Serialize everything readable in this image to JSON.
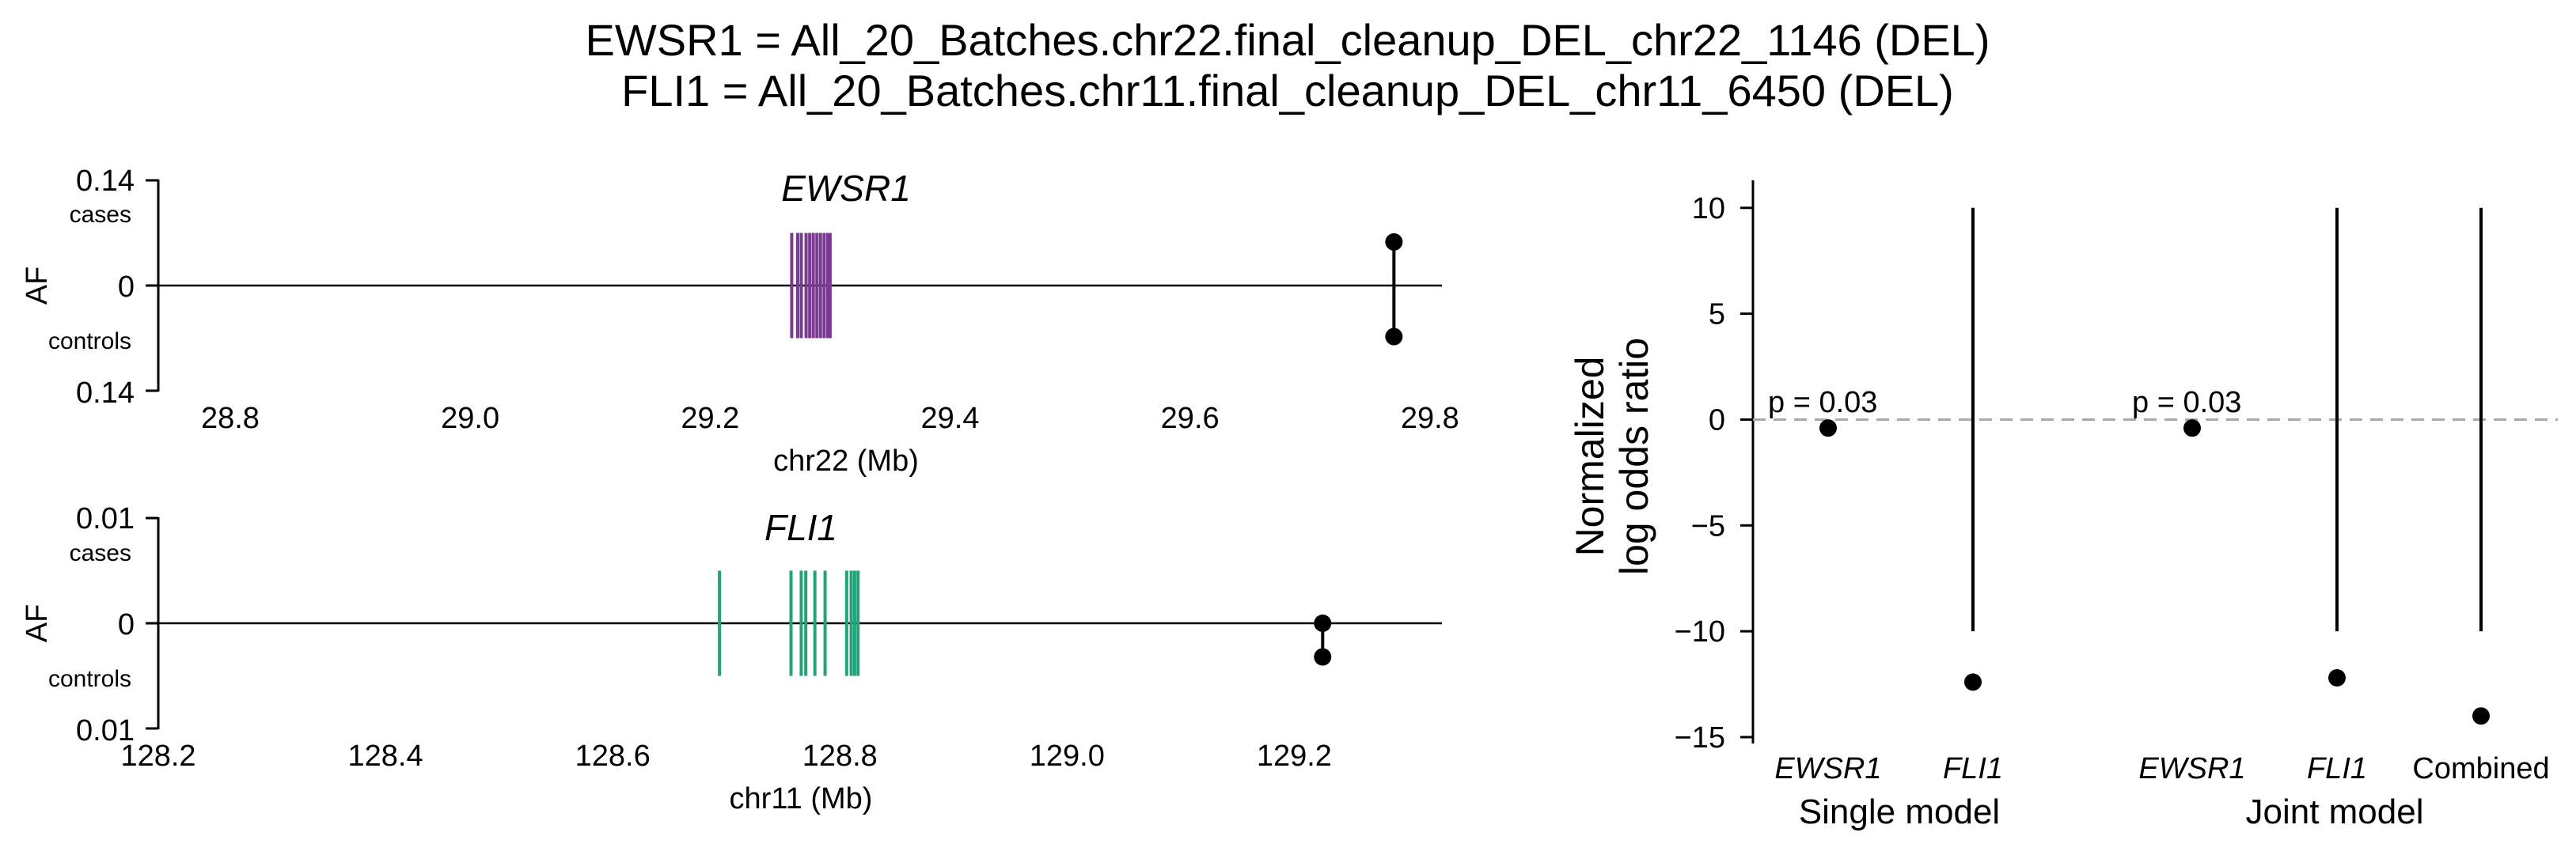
{
  "suptitle": {
    "line1": "EWSR1 = All_20_Batches.chr22.final_cleanup_DEL_chr22_1146 (DEL)",
    "line2": "FLI1 = All_20_Batches.chr11.final_cleanup_DEL_chr11_6450 (DEL)"
  },
  "colors": {
    "ewsr1": "#7a3a8f",
    "fli1": "#22a37a",
    "dashed": "#a8a8a8",
    "ink": "#000000"
  },
  "chart_data": [
    {
      "type": "scatter",
      "panel": "EWSR1 locus",
      "title": "EWSR1",
      "xlabel": "chr22 (Mb)",
      "ylabel": "AF",
      "xlim": [
        28.74,
        29.81
      ],
      "xticks": [
        "28.8",
        "29.0",
        "29.2",
        "29.4",
        "29.6",
        "29.8"
      ],
      "yticks": [
        "0.14",
        "0",
        "0.14"
      ],
      "ylim": [
        -0.14,
        0.14
      ],
      "y_side_labels": {
        "top": "cases",
        "bottom": "controls"
      },
      "exons_mb": [
        29.268,
        29.273,
        29.276,
        29.28,
        29.283,
        29.286,
        29.289,
        29.292,
        29.295,
        29.298,
        29.3
      ],
      "exon_half_height": 0.07,
      "sv_x_mb": 29.77,
      "case_af": 0.058,
      "control_af": 0.068
    },
    {
      "type": "scatter",
      "panel": "FLI1 locus",
      "title": "FLI1",
      "xlabel": "chr11 (Mb)",
      "ylabel": "AF",
      "xlim": [
        128.2,
        129.33
      ],
      "xticks": [
        "128.2",
        "128.4",
        "128.6",
        "128.8",
        "129.0",
        "129.2"
      ],
      "yticks": [
        "0.01",
        "0",
        "0.01"
      ],
      "ylim": [
        -0.01,
        0.01
      ],
      "y_side_labels": {
        "top": "cases",
        "bottom": "controls"
      },
      "exons_mb": [
        128.694,
        128.757,
        128.766,
        128.77,
        128.778,
        128.787,
        128.806,
        128.81,
        128.813,
        128.816
      ],
      "exon_half_height": 0.005,
      "sv_x_mb": 129.225,
      "case_af": 0.0,
      "control_af": 0.0032
    },
    {
      "type": "scatter",
      "panel": "log odds ratio",
      "ylabel": [
        "Normalized",
        "log odds ratio"
      ],
      "ylim": [
        -15.3,
        11.3
      ],
      "yticks": [
        "10",
        "5",
        "0",
        "−5",
        "−10",
        "−15"
      ],
      "reference_line": 0,
      "categories": [
        "EWSR1",
        "FLI1",
        "EWSR1",
        "FLI1",
        "Combined"
      ],
      "category_italic": [
        true,
        true,
        true,
        true,
        false
      ],
      "values": [
        -0.4,
        -12.4,
        -0.4,
        -12.2,
        -14.0
      ],
      "ci_low": [
        null,
        -10,
        null,
        -10,
        -10
      ],
      "ci_high": [
        null,
        10,
        null,
        10,
        10
      ],
      "pvalue_labels": [
        "p = 0.03",
        null,
        "p = 0.03",
        null,
        null
      ],
      "groups": [
        "Single model",
        "Joint model"
      ]
    }
  ]
}
